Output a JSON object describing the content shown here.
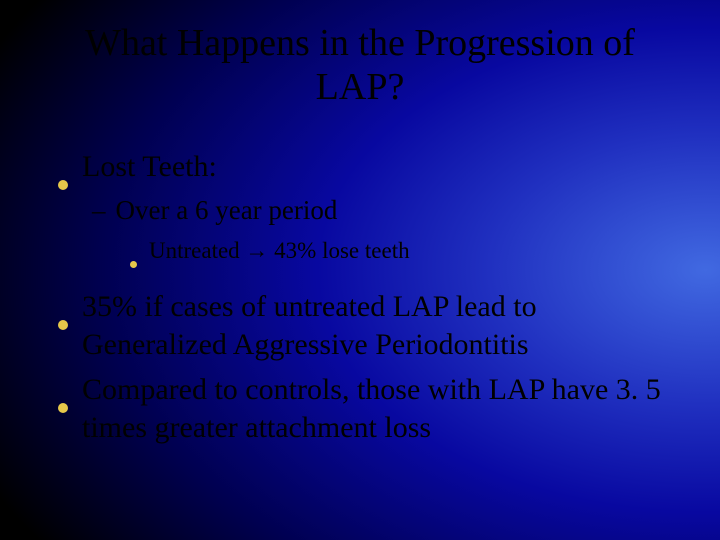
{
  "colors": {
    "bullet": "#e6c84a",
    "text": "#000000",
    "bg_gradient": [
      "#4169e1",
      "#2030c0",
      "#0808a0",
      "#000050",
      "#000000"
    ]
  },
  "typography": {
    "font_family": "Times New Roman",
    "title_pt": 38,
    "l1_pt": 30,
    "l2_pt": 27,
    "l3_pt": 23
  },
  "title": "What Happens in the Progression of LAP?",
  "bullets": [
    {
      "level": 1,
      "text": "Lost Teeth:",
      "children": [
        {
          "level": 2,
          "text": "Over a 6 year period",
          "children": [
            {
              "level": 3,
              "text": "Untreated → 43% lose teeth"
            }
          ]
        }
      ]
    },
    {
      "level": 1,
      "text": "35% if cases of untreated LAP lead to Generalized Aggressive Periodontitis"
    },
    {
      "level": 1,
      "text": "Compared to controls, those with LAP have 3. 5 times greater attachment loss"
    }
  ]
}
